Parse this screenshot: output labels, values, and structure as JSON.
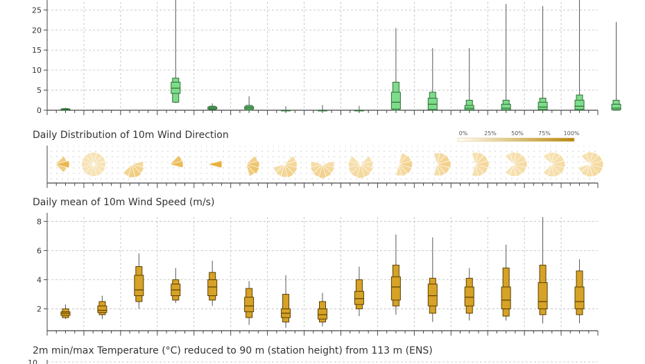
{
  "colors": {
    "precip_fill": "#7ddc8a",
    "precip_stroke": "#2f6b36",
    "wind_fill": "#d6a227",
    "wind_stroke": "#5a3e00",
    "whisker": "#555555",
    "grid": "#bbbbbb",
    "axis": "#444444",
    "rose_light": "#fbeed0",
    "rose_dark": "#e6a92b",
    "legend_start": "#fffdf5",
    "legend_end": "#b8860b"
  },
  "chart_data": [
    {
      "type": "box",
      "id": "precip",
      "title": "",
      "ylim": [
        0,
        28
      ],
      "yticks": [
        "0",
        "5",
        "10",
        "15",
        "20",
        "25"
      ],
      "days": [
        {
          "min": 0,
          "q1": 0,
          "lq": 0.1,
          "med": 0.2,
          "uq": 0.3,
          "q3": 0.4,
          "max": 0.6
        },
        null,
        null,
        {
          "min": 1.8,
          "q1": 2,
          "lq": 4.2,
          "med": 5.5,
          "uq": 7,
          "q3": 8,
          "max": 28
        },
        {
          "min": 0,
          "q1": 0.1,
          "lq": 0.3,
          "med": 0.5,
          "uq": 0.8,
          "q3": 1,
          "max": 1.7
        },
        {
          "min": 0,
          "q1": 0,
          "lq": 0.3,
          "med": 0.6,
          "uq": 0.9,
          "q3": 1.2,
          "max": 3.5
        },
        {
          "min": 0,
          "q1": 0,
          "lq": 0,
          "med": 0,
          "uq": 0,
          "q3": 0,
          "max": 1
        },
        {
          "min": 0,
          "q1": 0,
          "lq": 0,
          "med": 0,
          "uq": 0,
          "q3": 0,
          "max": 1.3
        },
        {
          "min": 0,
          "q1": 0,
          "lq": 0,
          "med": 0,
          "uq": 0,
          "q3": 0,
          "max": 1.1
        },
        {
          "min": 0,
          "q1": 0,
          "lq": 0.3,
          "med": 2,
          "uq": 4.5,
          "q3": 7,
          "max": 20.5
        },
        {
          "min": 0,
          "q1": 0,
          "lq": 0.2,
          "med": 1.5,
          "uq": 3,
          "q3": 4.5,
          "max": 15.5
        },
        {
          "min": 0,
          "q1": 0,
          "lq": 0.1,
          "med": 0.5,
          "uq": 1.2,
          "q3": 2.5,
          "max": 15.5
        },
        {
          "min": 0,
          "q1": 0,
          "lq": 0.1,
          "med": 0.5,
          "uq": 1.5,
          "q3": 2.5,
          "max": 26.5
        },
        {
          "min": 0,
          "q1": 0,
          "lq": 0.2,
          "med": 0.8,
          "uq": 2,
          "q3": 3,
          "max": 26
        },
        {
          "min": 0,
          "q1": 0,
          "lq": 0.2,
          "med": 1,
          "uq": 2.5,
          "q3": 3.8,
          "max": 27.5
        },
        {
          "min": 0,
          "q1": 0,
          "lq": 0.1,
          "med": 0.5,
          "uq": 1.5,
          "q3": 2.5,
          "max": 22
        }
      ]
    },
    {
      "type": "rose",
      "id": "wind_dir",
      "title": "Daily Distribution of 10m Wind Direction",
      "legend": [
        "0%",
        "25%",
        "50%",
        "75%",
        "100%"
      ],
      "days": [
        {
          "dir": 90,
          "spread": 60,
          "int": 0.85
        },
        {
          "dir": 0,
          "spread": 360,
          "int": 0.25
        },
        {
          "dir": 160,
          "spread": 150,
          "int": 0.55
        },
        {
          "dir": 80,
          "spread": 70,
          "int": 0.9
        },
        {
          "dir": 90,
          "spread": 50,
          "int": 0.95
        },
        {
          "dir": 110,
          "spread": 120,
          "int": 0.7
        },
        {
          "dir": 140,
          "spread": 200,
          "int": 0.45
        },
        {
          "dir": 180,
          "spread": 200,
          "int": 0.45
        },
        {
          "dir": 180,
          "spread": 260,
          "int": 0.35
        },
        {
          "dir": 100,
          "spread": 160,
          "int": 0.45
        },
        {
          "dir": 90,
          "spread": 180,
          "int": 0.45
        },
        {
          "dir": 90,
          "spread": 220,
          "int": 0.35
        },
        {
          "dir": 90,
          "spread": 240,
          "int": 0.3
        },
        {
          "dir": 100,
          "spread": 260,
          "int": 0.3
        },
        {
          "dir": 100,
          "spread": 280,
          "int": 0.35
        }
      ]
    },
    {
      "type": "box",
      "id": "wind_speed",
      "title": "Daily mean of 10m Wind Speed (m/s)",
      "ylim": [
        0.5,
        8.3
      ],
      "yticks": [
        "2",
        "4",
        "6",
        "8"
      ],
      "days": [
        {
          "min": 1.3,
          "q1": 1.4,
          "lq": 1.55,
          "med": 1.7,
          "uq": 1.8,
          "q3": 2,
          "max": 2.3
        },
        {
          "min": 1.3,
          "q1": 1.6,
          "lq": 1.75,
          "med": 1.9,
          "uq": 2.2,
          "q3": 2.5,
          "max": 2.9
        },
        {
          "min": 2,
          "q1": 2.5,
          "lq": 2.9,
          "med": 3.3,
          "uq": 4.3,
          "q3": 4.9,
          "max": 5.8
        },
        {
          "min": 2.4,
          "q1": 2.6,
          "lq": 2.9,
          "med": 3.3,
          "uq": 3.7,
          "q3": 4,
          "max": 4.8
        },
        {
          "min": 2.2,
          "q1": 2.6,
          "lq": 2.9,
          "med": 3.5,
          "uq": 4,
          "q3": 4.5,
          "max": 5.3
        },
        {
          "min": 0.9,
          "q1": 1.4,
          "lq": 1.8,
          "med": 2.2,
          "uq": 2.8,
          "q3": 3.4,
          "max": 3.9
        },
        {
          "min": 0.7,
          "q1": 1.1,
          "lq": 1.4,
          "med": 1.7,
          "uq": 2,
          "q3": 3,
          "max": 4.3
        },
        {
          "min": 0.8,
          "q1": 1.1,
          "lq": 1.3,
          "med": 1.6,
          "uq": 2,
          "q3": 2.5,
          "max": 3.1
        },
        {
          "min": 1.5,
          "q1": 2,
          "lq": 2.3,
          "med": 2.7,
          "uq": 3.2,
          "q3": 4,
          "max": 4.9
        },
        {
          "min": 1.6,
          "q1": 2.2,
          "lq": 2.6,
          "med": 3.5,
          "uq": 4.2,
          "q3": 5,
          "max": 7.1
        },
        {
          "min": 1.1,
          "q1": 1.7,
          "lq": 2.2,
          "med": 2.9,
          "uq": 3.7,
          "q3": 4.1,
          "max": 6.9
        },
        {
          "min": 1.2,
          "q1": 1.7,
          "lq": 2.2,
          "med": 2.8,
          "uq": 3.5,
          "q3": 4.1,
          "max": 4.8
        },
        {
          "min": 1.2,
          "q1": 1.5,
          "lq": 2,
          "med": 2.6,
          "uq": 3.5,
          "q3": 4.8,
          "max": 6.4
        },
        {
          "min": 1,
          "q1": 1.6,
          "lq": 2,
          "med": 2.5,
          "uq": 3.8,
          "q3": 5,
          "max": 8.3
        },
        {
          "min": 1,
          "q1": 1.6,
          "lq": 2,
          "med": 2.5,
          "uq": 3.5,
          "q3": 4.6,
          "max": 5.4
        }
      ]
    }
  ],
  "temp_panel": {
    "title": "2m min/max Temperature (°C) reduced to 90 m (station height) from 113 m (ENS)",
    "first_tick": "10"
  }
}
